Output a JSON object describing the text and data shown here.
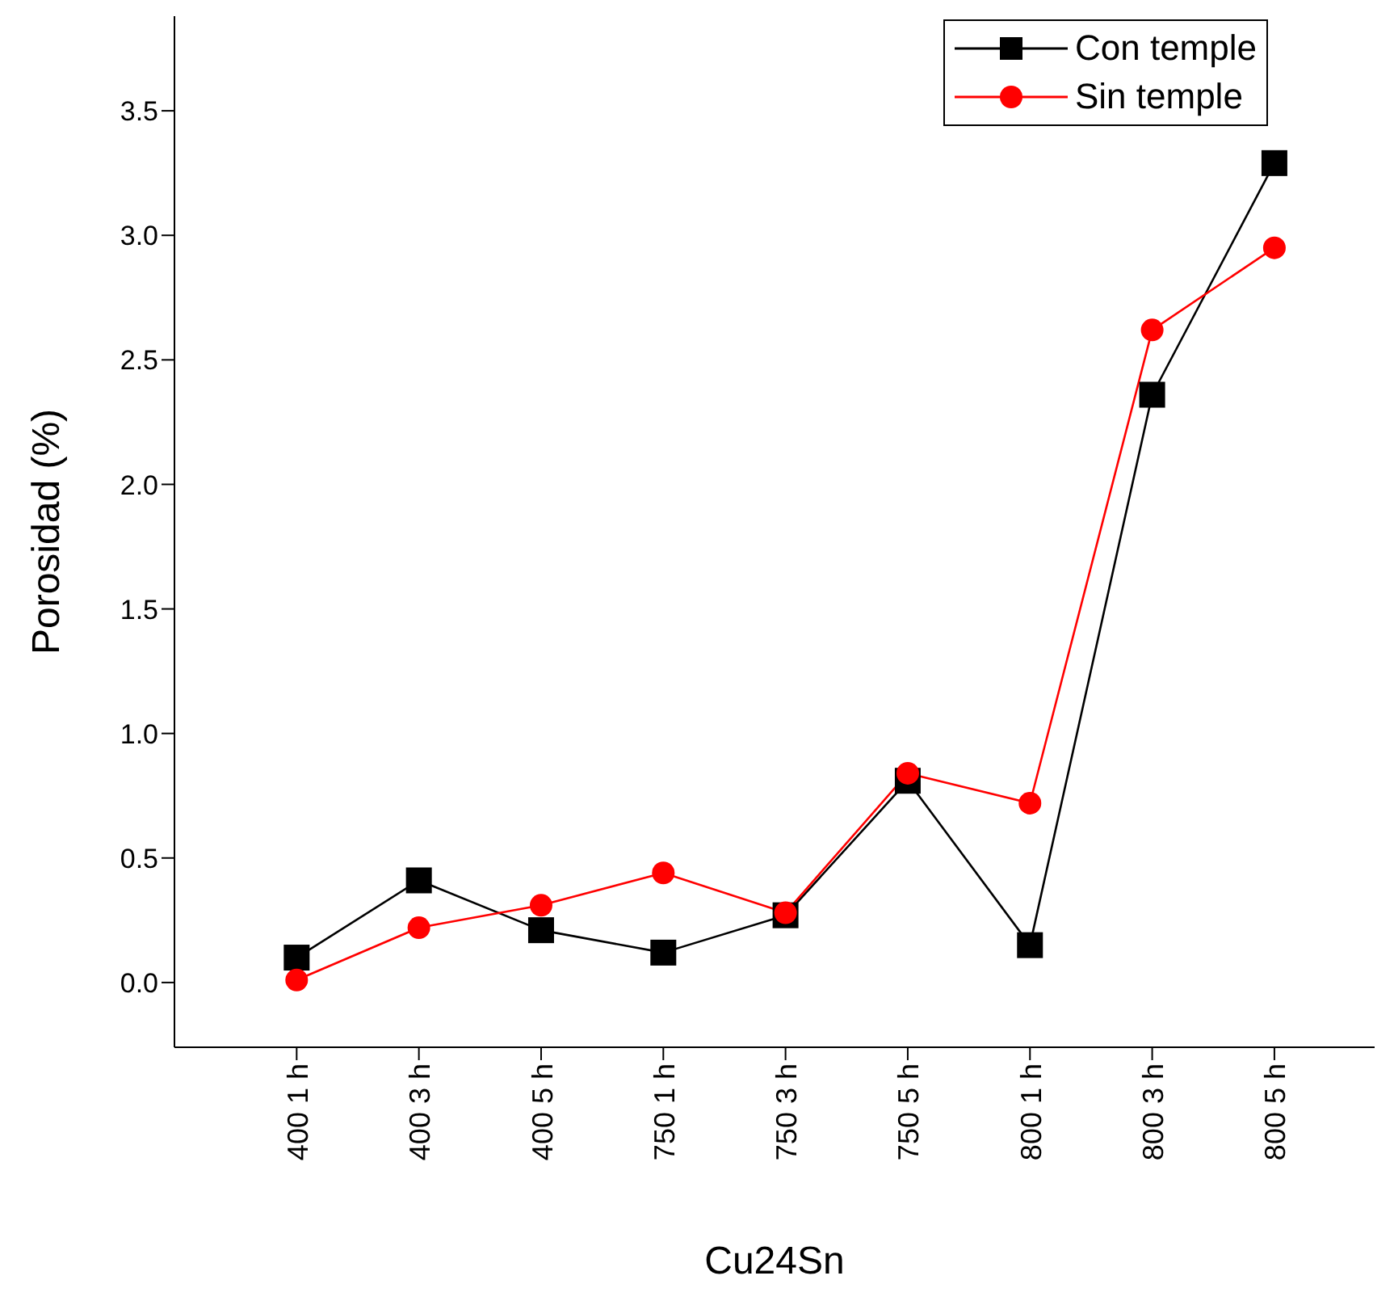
{
  "chart_data": {
    "type": "line",
    "xlabel": "Cu24Sn",
    "ylabel": "Porosidad (%)",
    "categories": [
      "400  1 h",
      "400  3 h",
      "400  5 h",
      "750  1 h",
      "750  3 h",
      "750  5 h",
      "800  1 h",
      "800  3 h",
      "800  5 h"
    ],
    "series": [
      {
        "name": "Con temple",
        "color": "#000000",
        "marker": "square",
        "values": [
          0.1,
          0.41,
          0.21,
          0.12,
          0.27,
          0.81,
          0.15,
          2.36,
          3.29
        ]
      },
      {
        "name": "Sin temple",
        "color": "#ff0000",
        "marker": "circle",
        "values": [
          0.01,
          0.22,
          0.31,
          0.44,
          0.28,
          0.84,
          0.72,
          2.62,
          2.95
        ]
      }
    ],
    "ylim": [
      -0.26,
      3.88
    ],
    "yticks": [
      {
        "value": 0,
        "label": "0.0"
      },
      0.5,
      {
        "value": 1,
        "label": "1.0"
      },
      1.5,
      {
        "value": 2,
        "label": "2.0"
      },
      2.5,
      {
        "value": 3,
        "label": "3.0"
      },
      3.5
    ],
    "grid": false,
    "legend": "top right",
    "line_style": "solid"
  }
}
